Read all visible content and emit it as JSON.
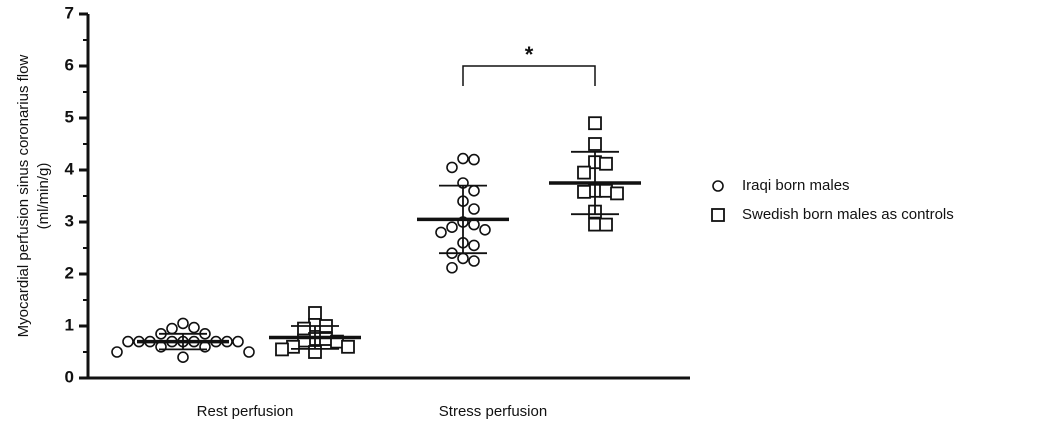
{
  "chart_data": {
    "type": "dot",
    "ylabel": [
      "Myocardial perfusion  sinus coronarius flow",
      "(ml/min/g)"
    ],
    "categories": [
      "Rest perfusion",
      "Stress  perfusion"
    ],
    "ylim": [
      0,
      7
    ],
    "yticks": [
      0,
      1,
      2,
      3,
      4,
      5,
      6,
      7
    ],
    "yminorticks": [
      0.5,
      1.5,
      2.5,
      3.5,
      4.5,
      5.5,
      6.5
    ],
    "legend": "right",
    "series": [
      {
        "name": "Iraqi born males",
        "marker": "circle",
        "color": "#111111",
        "values": [
          [
            1.05,
            0.97,
            0.95,
            0.85,
            0.85,
            0.7,
            0.7,
            0.7,
            0.7,
            0.7,
            0.7,
            0.7,
            0.7,
            0.7,
            0.6,
            0.6,
            0.5,
            0.5,
            0.4
          ],
          [
            4.22,
            4.2,
            4.05,
            3.75,
            3.6,
            3.4,
            3.25,
            3.0,
            2.95,
            2.9,
            2.85,
            2.8,
            2.6,
            2.55,
            2.4,
            2.3,
            2.25,
            2.12
          ]
        ],
        "mean": [
          0.7,
          3.05
        ],
        "sd": [
          0.15,
          0.65
        ]
      },
      {
        "name": "Swedish born males as controls",
        "marker": "square",
        "color": "#111111",
        "values": [
          [
            1.25,
            1.02,
            1.0,
            0.95,
            0.75,
            0.75,
            0.72,
            0.7,
            0.6,
            0.6,
            0.55,
            0.5
          ],
          [
            4.9,
            4.5,
            4.15,
            4.12,
            3.95,
            3.6,
            3.6,
            3.58,
            3.55,
            3.2,
            2.95,
            2.95
          ]
        ],
        "mean": [
          0.78,
          3.75
        ],
        "sd": [
          0.22,
          0.6
        ]
      }
    ],
    "annotations": [
      {
        "text": "*",
        "category": 1,
        "y": 6
      }
    ]
  }
}
